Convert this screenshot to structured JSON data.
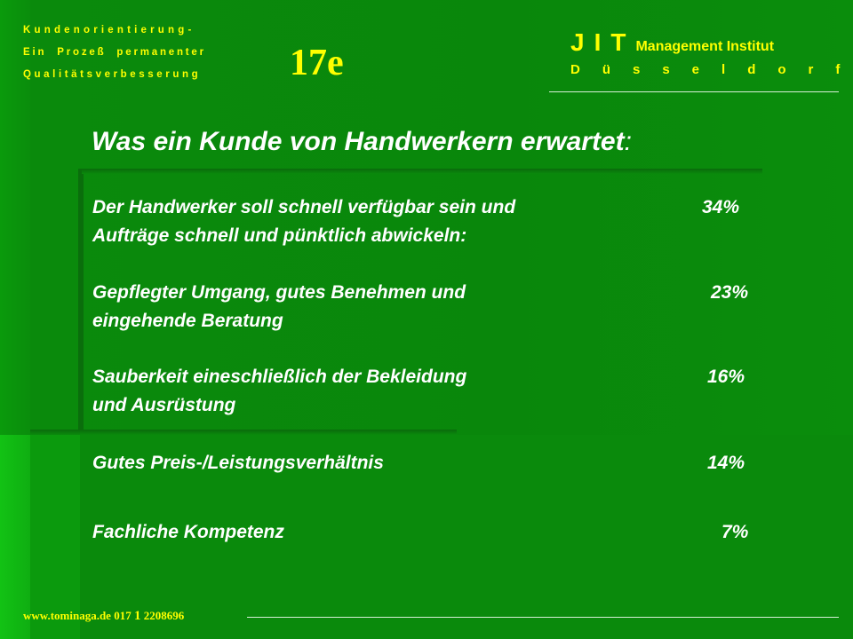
{
  "header": {
    "left_line1": "Kundenorientierung-",
    "left_line2": "Ein Prozeß permanenter",
    "left_line3": "Qualitätsverbesserung",
    "slide_number": "17e",
    "org_letters": "JIT",
    "org_name": "Management Institut",
    "city": "Düsseldorf"
  },
  "title": {
    "text": "Was ein Kunde von Handwerkern erwartet",
    "colon": ":"
  },
  "items": [
    {
      "line1": "Der Handwerker soll schnell verfügbar sein und",
      "line2": "Aufträge schnell und pünktlich abwickeln:",
      "percent": "34%"
    },
    {
      "line1": "Gepflegter Umgang, gutes Benehmen und",
      "line2": "eingehende Beratung",
      "percent": "23%"
    },
    {
      "line1": "Sauberkeit eineschließlich der Bekleidung",
      "line2": "und Ausrüstung",
      "percent": "16%"
    },
    {
      "line1": "Gutes Preis-/Leistungsverhältnis",
      "line2": "",
      "percent": "14%"
    },
    {
      "line1": "Fachliche Kompetenz",
      "line2": "",
      "percent": "7%"
    }
  ],
  "footer": {
    "website": "www.tominaga.de",
    "phone_part1": "017",
    "phone_part2": "1",
    "phone_part3": "2208696"
  }
}
